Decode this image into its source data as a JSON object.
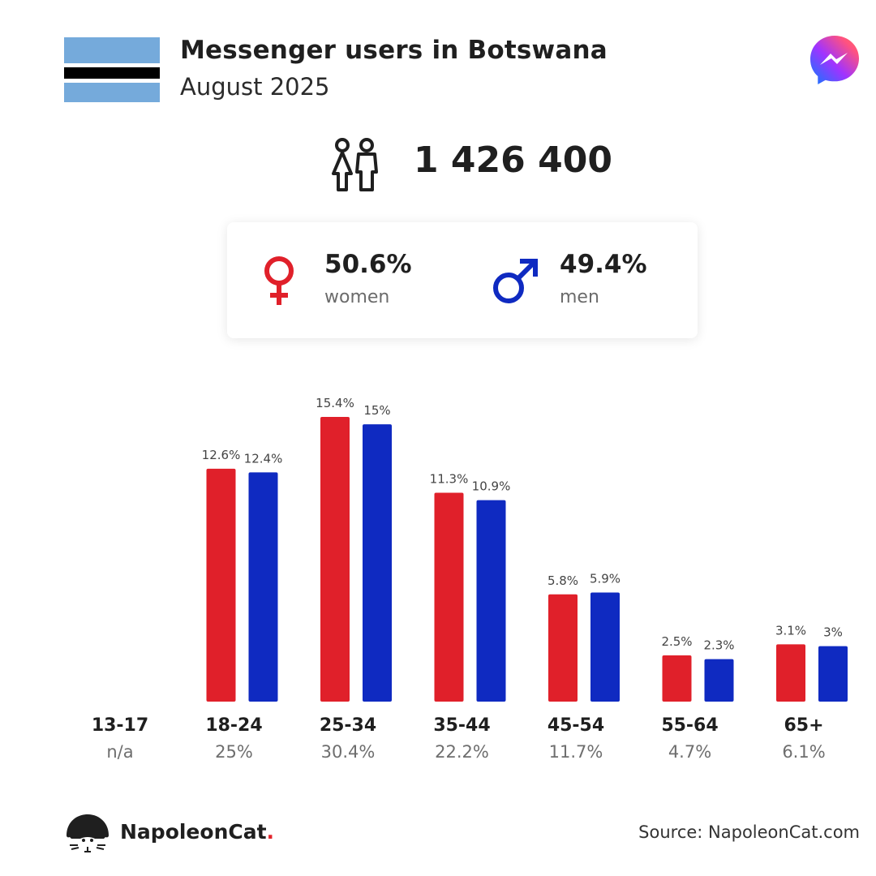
{
  "header": {
    "title": "Messenger users in Botswana",
    "subtitle": "August 2025"
  },
  "flag": {
    "name": "Botswana flag",
    "colors": {
      "blue": "#75aadb",
      "white": "#ffffff",
      "black": "#000000"
    }
  },
  "logo": {
    "icon": "messenger-logo-icon"
  },
  "total": {
    "icon": "people-icon",
    "value": "1 426 400"
  },
  "gender": {
    "women": {
      "percent": "50.6%",
      "label": "women",
      "icon": "female-symbol-icon",
      "color": "#e0202a"
    },
    "men": {
      "percent": "49.4%",
      "label": "men",
      "icon": "male-symbol-icon",
      "color": "#0f2ac1"
    }
  },
  "chart_data": {
    "type": "bar",
    "title": "",
    "xlabel": "",
    "ylabel": "",
    "grid": false,
    "categories": [
      "13-17",
      "18-24",
      "25-34",
      "35-44",
      "45-54",
      "55-64",
      "65+"
    ],
    "category_totals": [
      "n/a",
      "25%",
      "30.4%",
      "22.2%",
      "11.7%",
      "4.7%",
      "6.1%"
    ],
    "series": [
      {
        "color": "#e0202a",
        "values": [
          null,
          12.6,
          15.4,
          11.3,
          5.8,
          2.5,
          3.1
        ],
        "labels": [
          "",
          "12.6%",
          "15.4%",
          "11.3%",
          "5.8%",
          "2.5%",
          "3.1%"
        ]
      },
      {
        "color": "#0f2ac1",
        "values": [
          null,
          12.4,
          15.0,
          10.9,
          5.9,
          2.3,
          3.0
        ],
        "labels": [
          "",
          "12.4%",
          "15%",
          "10.9%",
          "5.9%",
          "2.3%",
          "3%"
        ]
      }
    ],
    "ylim": [
      0,
      15.4
    ]
  },
  "footer": {
    "brand": "NapoleonCat",
    "brand_dot": ".",
    "brand_icon": "napoleoncat-logo-icon",
    "source": "Source: NapoleonCat.com"
  }
}
